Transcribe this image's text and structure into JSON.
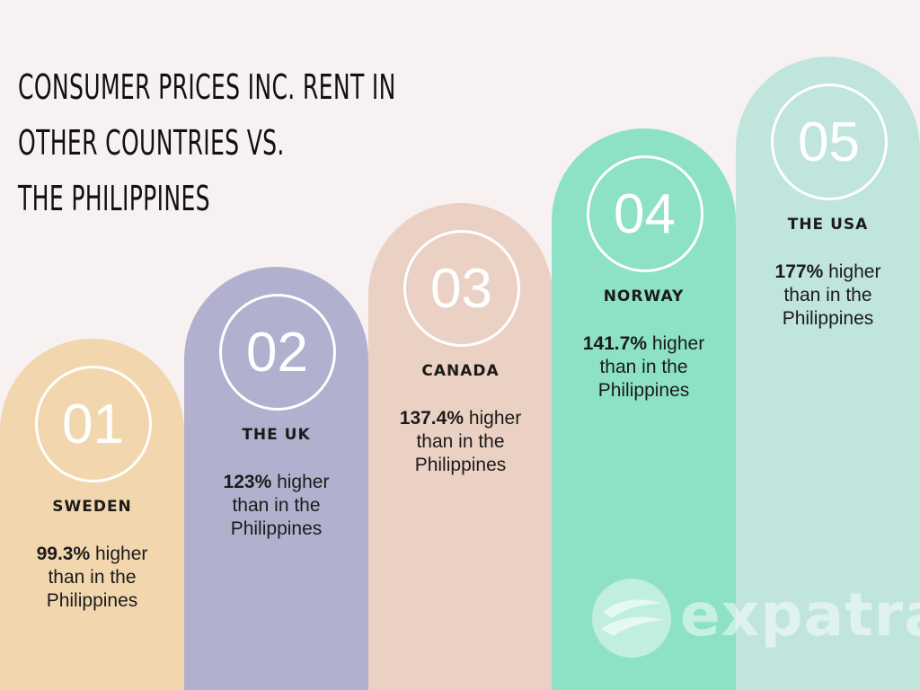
{
  "title": {
    "lines": [
      "CONSUMER PRICES INC. RENT IN",
      "OTHER COUNTRIES VS.",
      "THE PHILIPPINES"
    ]
  },
  "chart_data": {
    "type": "bar",
    "title": "CONSUMER PRICES INC. RENT IN OTHER COUNTRIES VS. THE PHILIPPINES",
    "categories": [
      "SWEDEN",
      "THE UK",
      "CANADA",
      "NORWAY",
      "THE USA"
    ],
    "values": [
      99.3,
      123,
      137.4,
      141.7,
      177
    ],
    "unit": "%"
  },
  "items": [
    {
      "number": "01",
      "country": "SWEDEN",
      "value": "99.3%",
      "suffix": " higher",
      "line2": "than in the",
      "line3": "Philippines",
      "color": "#f2d7ae"
    },
    {
      "number": "02",
      "country": "THE UK",
      "value": "123%",
      "suffix": " higher",
      "line2": "than in the",
      "line3": "Philippines",
      "color": "#b1b1cf"
    },
    {
      "number": "03",
      "country": "CANADA",
      "value": "137.4%",
      "suffix": " higher",
      "line2": "than in the",
      "line3": "Philippines",
      "color": "#ebd0c4"
    },
    {
      "number": "04",
      "country": "NORWAY",
      "value": "141.7%",
      "suffix": " higher",
      "line2": "than in the",
      "line3": "Philippines",
      "color": "#8de1c7"
    },
    {
      "number": "05",
      "country": "THE USA",
      "value": "177%",
      "suffix": " higher",
      "line2": "than in the",
      "line3": "Philippines",
      "color": "#bfe5dc"
    }
  ],
  "logo": {
    "text": "expatra"
  }
}
